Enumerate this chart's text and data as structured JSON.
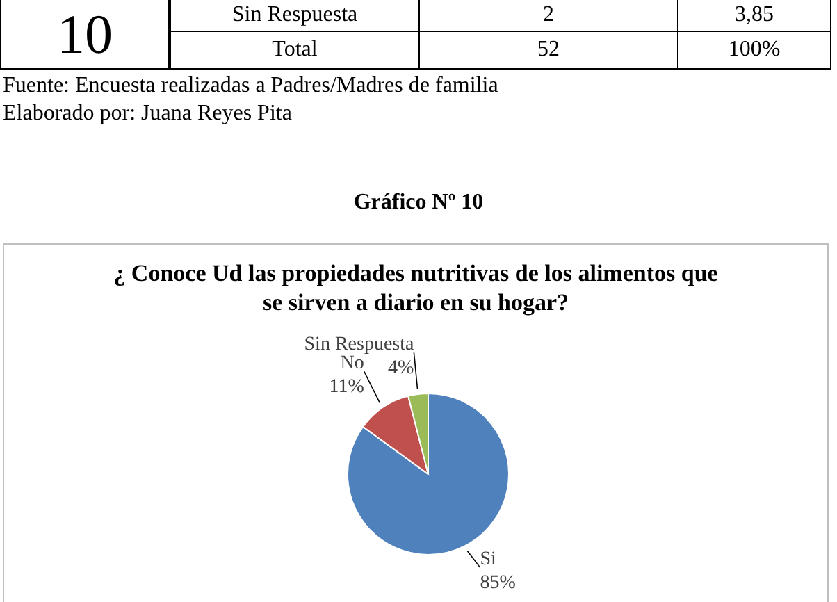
{
  "chart_data": {
    "type": "pie",
    "title": "¿ Conoce Ud las propiedades nutritivas de los alimentos que se sirven a diario en su hogar?",
    "categories": [
      "Si",
      "No",
      "Sin Respuesta"
    ],
    "values": [
      85,
      11,
      4
    ],
    "colors": [
      "#4f81bd",
      "#c0504d",
      "#9bbb59"
    ],
    "value_labels": [
      "85%",
      "11%",
      "4%"
    ],
    "legend": false,
    "annotations": [
      "10",
      "Sin Respuesta",
      "2",
      "3,85",
      "Total",
      "52",
      "100%",
      "Fuente: Encuesta realizadas a Padres/Madres de familia",
      "Elaborado por: Juana Reyes Pita",
      "Gráfico Nº 10"
    ]
  }
}
